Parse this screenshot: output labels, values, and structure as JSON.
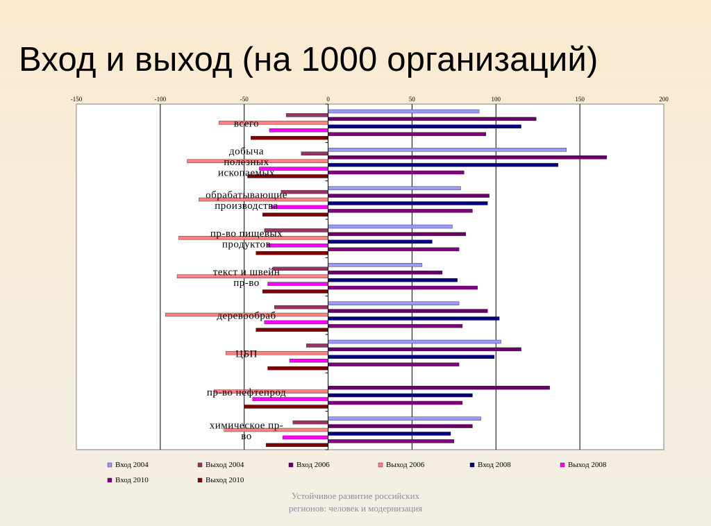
{
  "slide": {
    "title": "Вход и выход (на 1000 организаций)",
    "footer_line1": "Устойчивое развитие российских",
    "footer_line2": "регионов: человек и модернизация"
  },
  "chart_data": {
    "type": "bar",
    "orientation": "horizontal",
    "title": "",
    "xlabel": "",
    "ylabel": "",
    "xlim": [
      -150,
      200
    ],
    "x_ticks": [
      -150,
      -100,
      -50,
      0,
      50,
      100,
      150,
      200
    ],
    "grid": "vertical",
    "legend_position": "bottom",
    "categories": [
      [
        "всего"
      ],
      [
        "добыча",
        "полезных",
        "ископаемых"
      ],
      [
        "обрабатывающие",
        "производства"
      ],
      [
        "пр-во пищевых",
        "продуктов"
      ],
      [
        "текст и швейн",
        "пр-во"
      ],
      [
        "деревообраб"
      ],
      [
        "ЦБП"
      ],
      [
        "пр-во нефтепрод"
      ],
      [
        "химическое пр-",
        "во"
      ]
    ],
    "series": [
      {
        "name": "Вход 2004",
        "color": "#9999ff",
        "values": [
          90,
          142,
          79,
          74,
          56,
          78,
          103,
          0,
          91
        ]
      },
      {
        "name": "Выход 2004",
        "color": "#993366",
        "values": [
          -25,
          -16,
          -28,
          -38,
          -33,
          -32,
          -13,
          0,
          -21
        ]
      },
      {
        "name": "Вход 2006",
        "color": "#660066",
        "values": [
          124,
          166,
          96,
          82,
          68,
          95,
          115,
          132,
          86
        ]
      },
      {
        "name": "Выход 2006",
        "color": "#ff8080",
        "values": [
          -65,
          -84,
          -77,
          -89,
          -90,
          -97,
          -61,
          -68,
          -62
        ]
      },
      {
        "name": "Вход 2008",
        "color": "#000080",
        "values": [
          115,
          137,
          95,
          62,
          77,
          102,
          99,
          86,
          73
        ]
      },
      {
        "name": "Выход 2008",
        "color": "#ff00ff",
        "values": [
          -35,
          -41,
          -34,
          -36,
          -36,
          -38,
          -23,
          -45,
          -27
        ]
      },
      {
        "name": "Вход 2010",
        "color": "#800080",
        "values": [
          94,
          81,
          86,
          78,
          89,
          80,
          78,
          80,
          75
        ]
      },
      {
        "name": "Выход 2010",
        "color": "#800000",
        "values": [
          -46,
          -48,
          -39,
          -43,
          -39,
          -43,
          -36,
          -50,
          -37
        ]
      }
    ]
  }
}
